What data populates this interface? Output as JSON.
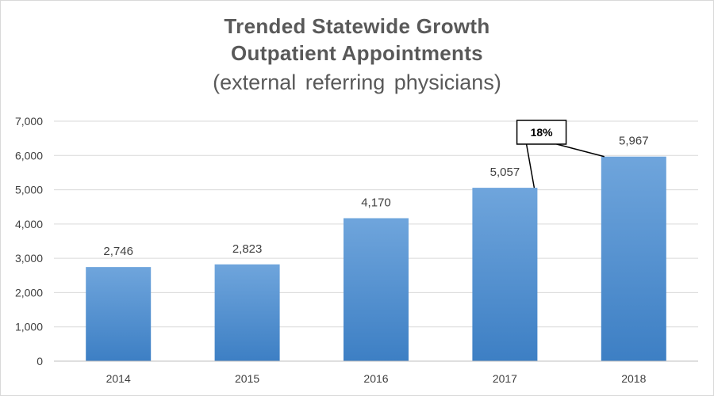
{
  "chart_data": {
    "type": "bar",
    "title": "Trended Statewide Growth",
    "subtitle": "Outpatient  Appointments",
    "subtitle2": "(external  referring  physicians)",
    "xlabel": "",
    "ylabel": "",
    "categories": [
      "2014",
      "2015",
      "2016",
      "2017",
      "2018"
    ],
    "values": [
      2746,
      2823,
      4170,
      5057,
      5967
    ],
    "value_labels": [
      "2,746",
      "2,823",
      "4,170",
      "5,057",
      "5,967"
    ],
    "ylim": [
      0,
      7000
    ],
    "yticks": [
      0,
      1000,
      2000,
      3000,
      4000,
      5000,
      6000,
      7000
    ],
    "ytick_labels": [
      "0",
      "1,000",
      "2,000",
      "3,000",
      "4,000",
      "5,000",
      "6,000",
      "7,000"
    ],
    "grid": true,
    "legend": "none",
    "annotation": {
      "text": "18%",
      "from_category": "2017",
      "to_category": "2018"
    },
    "colors": {
      "bar_top": "#6fa5dc",
      "bar_bottom": "#3d7fc4",
      "grid": "#d9d9d9",
      "axis": "#bfbfbf",
      "text": "#595959"
    }
  }
}
